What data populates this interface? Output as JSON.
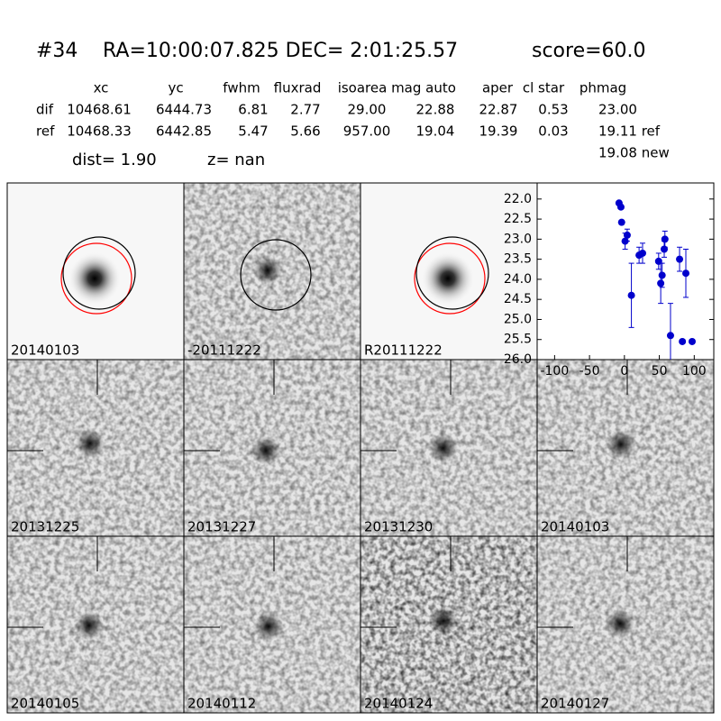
{
  "header": {
    "title": [
      "#34",
      "RA=10:00:07.825 DEC= 2:01:25.57",
      "score=60.0"
    ],
    "columns": [
      "xc",
      "yc",
      "fwhm",
      "fluxrad",
      "isoarea",
      "mag auto",
      "aper",
      "cl star",
      "phmag"
    ],
    "rows": [
      {
        "label": "dif",
        "values": [
          "10468.61",
          "6444.73",
          "6.81",
          "2.77",
          "29.00",
          "22.88",
          "22.87",
          "0.53",
          "23.00"
        ]
      },
      {
        "label": "ref",
        "values": [
          "10468.33",
          "6442.85",
          "5.47",
          "5.66",
          "957.00",
          "19.04",
          "19.39",
          "0.03",
          "19.11 ref"
        ]
      }
    ],
    "extra": "19.08 new",
    "dist": "dist=  1.90",
    "z": "z=   nan"
  },
  "panels": [
    {
      "label": "20140103"
    },
    {
      "label": "-20111222"
    },
    {
      "label": "R20111222"
    },
    {
      "label": "20131225"
    },
    {
      "label": "20131227"
    },
    {
      "label": "20131230"
    },
    {
      "label": "20140103",
      "color": "#ff0000"
    },
    {
      "label": "20140105"
    },
    {
      "label": "20140112"
    },
    {
      "label": "20140124"
    },
    {
      "label": "20140127"
    }
  ],
  "chart_data": {
    "type": "errorbar",
    "color": "#0000cc",
    "x": [
      -7.7,
      -5,
      -4,
      1,
      4,
      10,
      21,
      26,
      49,
      52,
      54,
      57,
      58,
      66,
      79,
      83,
      88,
      97
    ],
    "values": [
      22.1,
      22.2,
      22.58,
      23.05,
      22.9,
      24.4,
      23.4,
      23.35,
      23.55,
      24.1,
      23.9,
      23.25,
      23.0,
      25.4,
      23.5,
      25.55,
      23.85,
      25.55
    ],
    "errors": [
      0.05,
      0.05,
      0.05,
      0.2,
      0.15,
      0.8,
      0.2,
      0.25,
      0.2,
      0.5,
      0.3,
      0.2,
      0.2,
      0.8,
      0.3,
      0.05,
      0.6,
      0.05
    ],
    "xlim": [
      -125,
      128
    ],
    "xticks": [
      -100,
      -50,
      0,
      50,
      100
    ],
    "ylim": [
      26.0,
      21.6
    ],
    "inverted": true,
    "yticks": [
      {
        "value": 22.0,
        "label": "22.0"
      },
      {
        "value": 22.5,
        "label": "22.5"
      },
      {
        "value": 23.0,
        "label": "23.0"
      },
      {
        "value": 23.5,
        "label": "23.5"
      },
      {
        "value": 24.0,
        "label": "24.0"
      },
      {
        "value": 24.5,
        "label": "24.5"
      },
      {
        "value": 25.0,
        "label": "25.0"
      },
      {
        "value": 25.5,
        "label": "25.5"
      },
      {
        "value": 26.0,
        "label": "26.0"
      }
    ]
  }
}
